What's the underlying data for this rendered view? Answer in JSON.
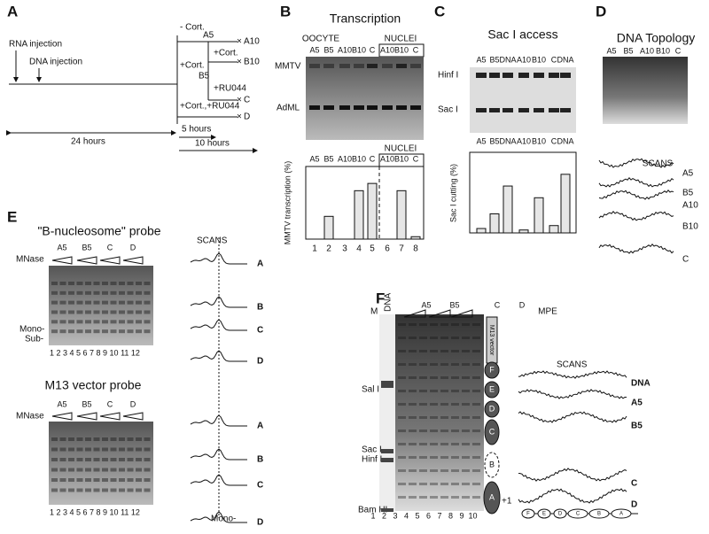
{
  "panels": {
    "a": {
      "letter": "A",
      "rna": "RNA injection",
      "dna": "DNA injection",
      "minus_cort": "- Cort.",
      "a5": "A5",
      "a10": "A10",
      "plus_cort_1": "+Cort.",
      "b10": "B10",
      "plus_cort_2": "+Cort.",
      "b5": "B5",
      "ru": "+RU044",
      "c": "C",
      "cort_ru": "+Cort.,+RU044",
      "d": "D",
      "h24": "24 hours",
      "h5": "5 hours",
      "h10": "10 hours"
    },
    "b": {
      "letter": "B",
      "title": "Transcription",
      "oocyte": "OOCYTE",
      "nuclei": "NUCLEI",
      "gel_lanes": [
        "A5",
        "B5",
        "A10",
        "B10",
        "C",
        "A10",
        "B10",
        "C"
      ],
      "mmtv": "MMTV",
      "adml": "AdML",
      "nuclei_2": "NUCLEI",
      "chart_lanes": [
        "A5",
        "B5",
        "A10",
        "B10",
        "C",
        "A10",
        "B10",
        "C"
      ],
      "ylabel": "MMTV transcription (%)",
      "lane_numbers": [
        1,
        2,
        3,
        4,
        5,
        6,
        7,
        8
      ],
      "values": [
        0,
        47,
        0,
        100,
        115,
        0,
        100,
        5
      ],
      "ylim": [
        0,
        150
      ]
    },
    "c": {
      "letter": "C",
      "title": "Sac I access",
      "gel_lanes": [
        "A5",
        "B5",
        "DNA",
        "A10",
        "B10",
        "C",
        "DNA"
      ],
      "hinf": "Hinf I",
      "sac": "Sac I",
      "chart_lanes": [
        "A5",
        "B5",
        "DNA",
        "A10",
        "B10",
        "C",
        "DNA"
      ],
      "ylabel": "Sac I cutting (%)",
      "values": [
        6,
        26,
        64,
        4,
        48,
        10,
        80
      ],
      "ylim": [
        0,
        110
      ]
    },
    "d": {
      "letter": "D",
      "title": "DNA Topology",
      "gel_lanes": [
        "A5",
        "B5",
        "A10",
        "B10",
        "C"
      ],
      "scans": "SCANS",
      "scan_labels": [
        "A5",
        "B5",
        "A10",
        "B10",
        "C"
      ]
    },
    "e": {
      "letter": "E",
      "top_title": "\"B-nucleosome\" probe",
      "mnase_1": "MNase",
      "groups_1": [
        "A5",
        "B5",
        "C",
        "D"
      ],
      "mono": "Mono-",
      "sub": "Sub-",
      "lanes_1": "1 2 3 4 5 6 7 8 9 10 11 12",
      "scans": "SCANS",
      "scan_labels_1": [
        "A",
        "B",
        "C",
        "D"
      ],
      "bottom_title": "M13 vector probe",
      "mnase_2": "MNase",
      "groups_2": [
        "A5",
        "B5",
        "C",
        "D"
      ],
      "lanes_2": "1 2 3 4 5 6 7 8 9 10 11 12",
      "scan_labels_2": [
        "A",
        "B",
        "C",
        "D"
      ],
      "mono_2": "Mono-"
    },
    "f": {
      "letter": "F",
      "m": "M",
      "dna": "DNA",
      "groups": [
        "A5",
        "B5",
        "C",
        "D"
      ],
      "mpe": "MPE",
      "sal": "Sal I",
      "sac": "Sac I",
      "hinf": "Hinf I",
      "bam": "Bam HI",
      "lane_numbers": [
        1,
        2,
        3,
        4,
        5,
        6,
        7,
        8,
        9,
        10
      ],
      "vector": "M13 vector",
      "nucleosomes": [
        "F",
        "E",
        "D",
        "C",
        "B",
        "A"
      ],
      "plus_one": "+1",
      "scans": "SCANS",
      "scan_labels": [
        "DNA",
        "A5",
        "B5",
        "C",
        "D"
      ],
      "map": [
        "F",
        "E",
        "D",
        "C",
        "B",
        "A"
      ]
    }
  }
}
